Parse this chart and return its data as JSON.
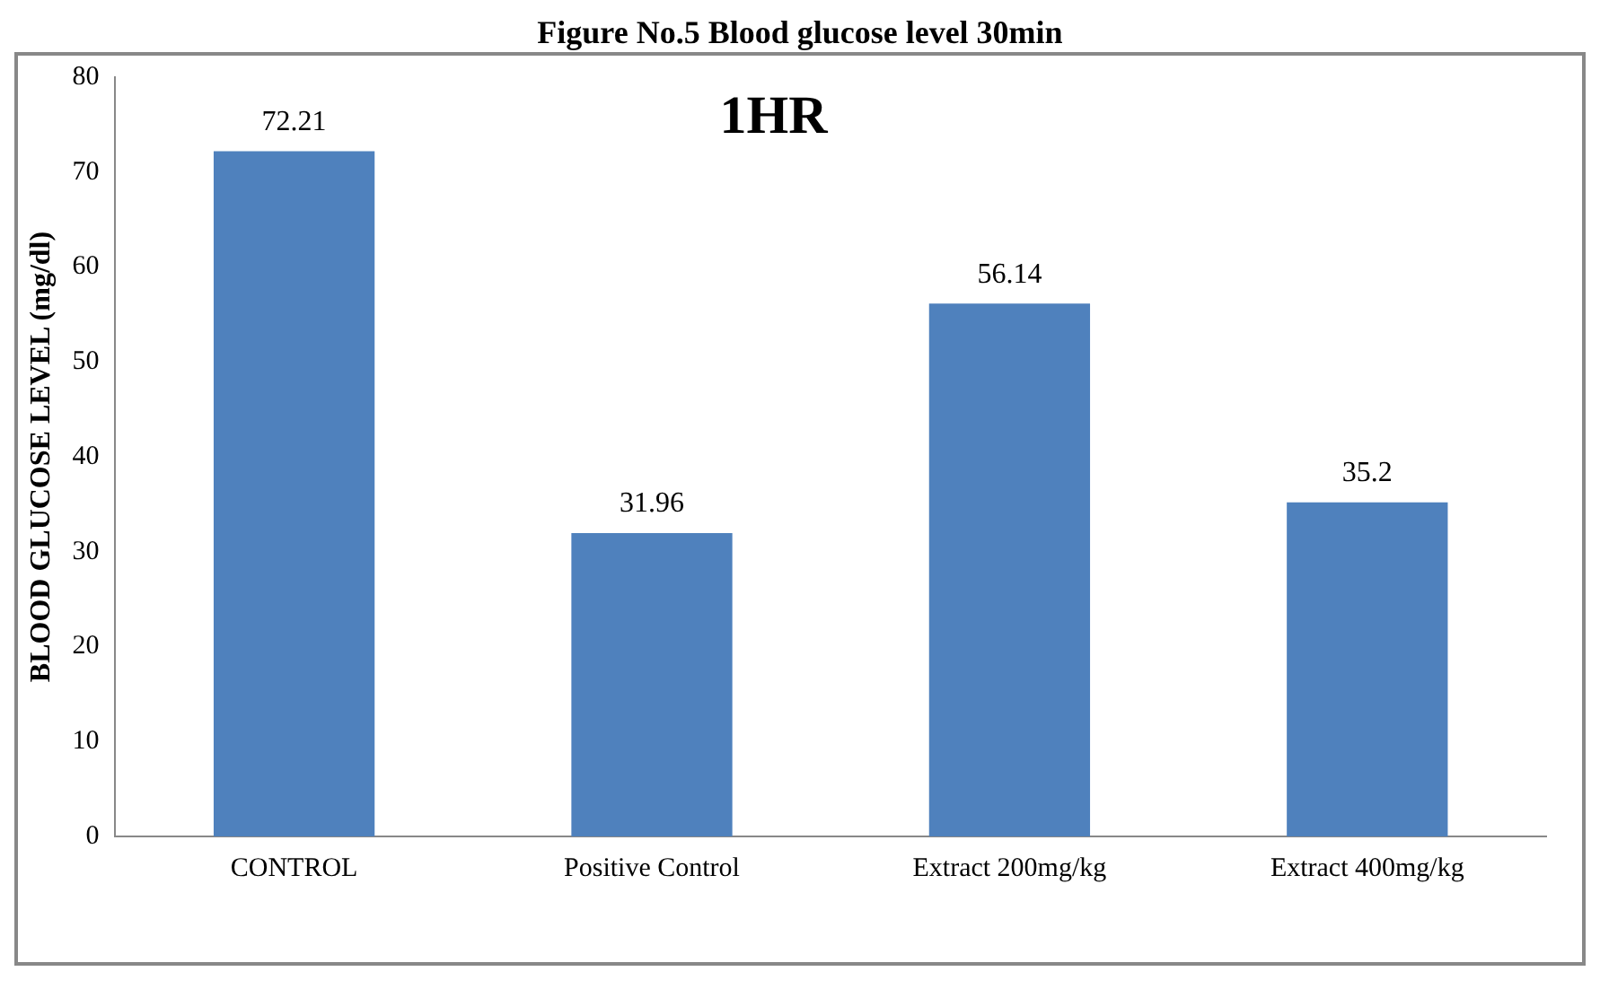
{
  "chart_data": {
    "type": "bar",
    "title": "Figure No.5 Blood glucose level 30min",
    "subtitle": "1HR",
    "ylabel": "BLOOD GLUCOSE LEVEL (mg/dl)",
    "categories": [
      "CONTROL",
      "Positive Control",
      "Extract 200mg/kg",
      "Extract 400mg/kg"
    ],
    "values": [
      72.21,
      31.96,
      56.14,
      35.2
    ],
    "color": "#4f81bd",
    "ylim": [
      0,
      80
    ],
    "yticks": [
      0,
      10,
      20,
      30,
      40,
      50,
      60,
      70,
      80
    ],
    "grid": false,
    "legend": false,
    "data_labels": true
  }
}
